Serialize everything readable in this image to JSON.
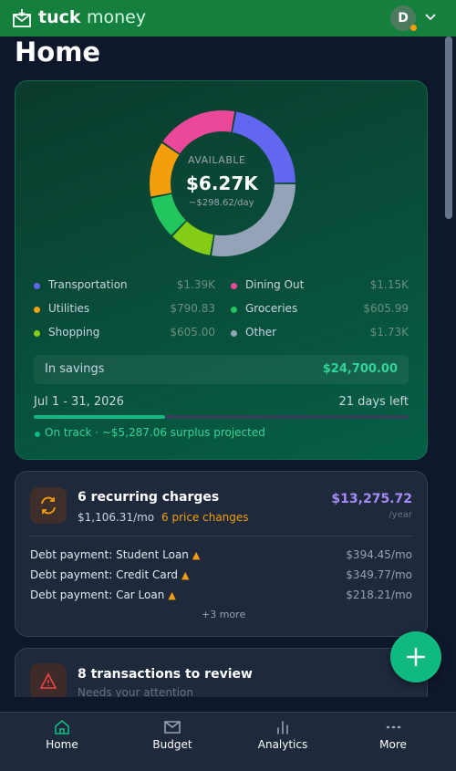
{
  "header": {
    "brand_bold": "tuck",
    "brand_light": "money",
    "avatar": "D"
  },
  "page_title": "Home",
  "budget": {
    "available_label": "AVAILABLE",
    "available": "$6.27K",
    "per_day": "~$298.62/day",
    "chart_data": {
      "type": "pie",
      "categories": [
        "Transportation",
        "Dining Out",
        "Utilities",
        "Groceries",
        "Shopping",
        "Other"
      ],
      "values": [
        1390,
        1150,
        790.83,
        605.99,
        605,
        1730
      ],
      "value_labels": [
        "$1.39K",
        "$1.15K",
        "$790.83",
        "$605.99",
        "$605.00",
        "$1.73K"
      ],
      "colors": [
        "#6366f1",
        "#ec4899",
        "#f59e0b",
        "#22c55e",
        "#84cc16",
        "#94a3b8"
      ]
    },
    "savings_label": "In savings",
    "savings": "$24,700.00",
    "period": "Jul 1 - 31, 2026",
    "days_left": "21 days left",
    "status": "On track · ~$5,287.06 surplus projected"
  },
  "recurring": {
    "title": "6 recurring charges",
    "monthly": "$1,106.31/mo",
    "price_changes": "6 price changes",
    "yearly": "$13,275.72",
    "yearly_unit": "/year",
    "rows": [
      {
        "name": "Debt payment: Student Loan",
        "amount": "$394.45/mo"
      },
      {
        "name": "Debt payment: Credit Card",
        "amount": "$349.77/mo"
      },
      {
        "name": "Debt payment: Car Loan",
        "amount": "$218.21/mo"
      }
    ],
    "more": "+3 more"
  },
  "review": {
    "title": "8 transactions to review",
    "subtitle": "Needs your attention"
  },
  "nav": [
    "Home",
    "Budget",
    "Analytics",
    "More"
  ]
}
